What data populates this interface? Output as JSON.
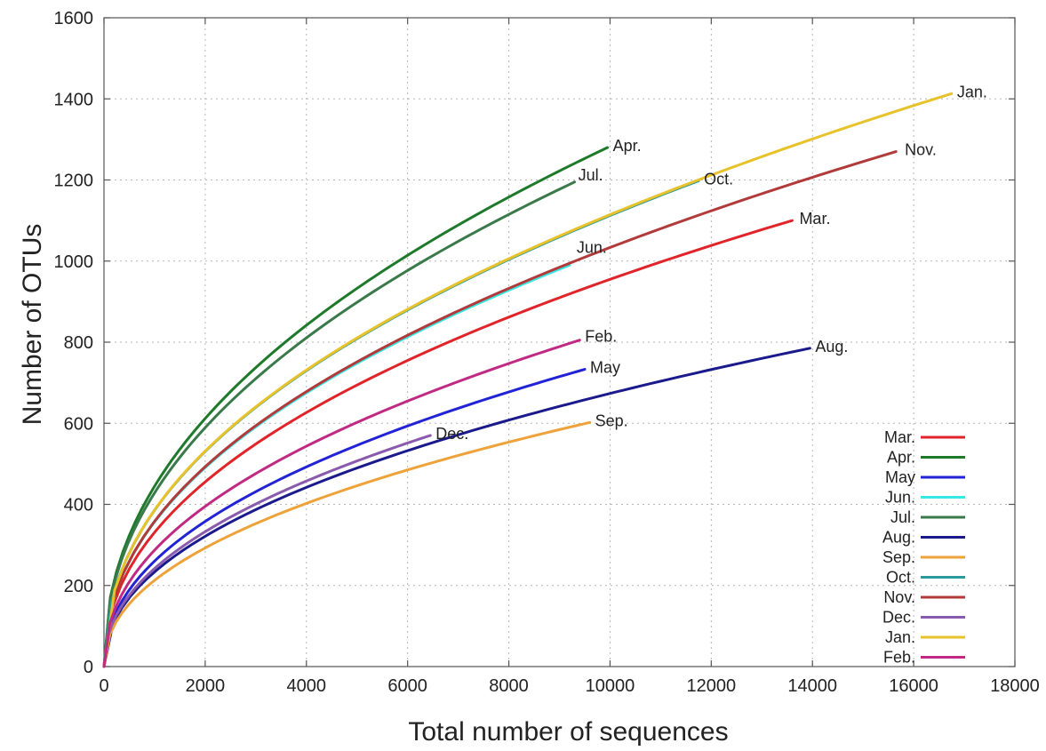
{
  "chart_data": {
    "type": "line",
    "title": "",
    "xlabel": "Total number of sequences",
    "ylabel": "Number of OTUs",
    "xlim": [
      0,
      18000
    ],
    "ylim": [
      0,
      1600
    ],
    "xticks": [
      "0",
      "2000",
      "4000",
      "6000",
      "8000",
      "10000",
      "12000",
      "14000",
      "16000",
      "18000"
    ],
    "yticks": [
      "0",
      "200",
      "400",
      "600",
      "800",
      "1000",
      "1200",
      "1400",
      "1600"
    ],
    "grid": true,
    "legend_position": "bottom-right",
    "series": [
      {
        "name": "Mar.",
        "color": "#e0252a",
        "max_x": 13600,
        "max_y": 1100,
        "label": "Mar."
      },
      {
        "name": "Apr.",
        "color": "#1e7a2a",
        "max_x": 9950,
        "max_y": 1280,
        "label": "Apr."
      },
      {
        "name": "May",
        "color": "#2323d6",
        "max_x": 9500,
        "max_y": 733,
        "label": "May"
      },
      {
        "name": "Jun.",
        "color": "#36e8e4",
        "max_x": 9200,
        "max_y": 990,
        "label": "Jun."
      },
      {
        "name": "Jul.",
        "color": "#3a7a4a",
        "max_x": 9300,
        "max_y": 1195,
        "label": "Jul."
      },
      {
        "name": "Aug.",
        "color": "#1a1a8c",
        "max_x": 13950,
        "max_y": 785,
        "label": "Aug."
      },
      {
        "name": "Sep.",
        "color": "#eea23a",
        "max_x": 9600,
        "max_y": 602,
        "label": "Sep."
      },
      {
        "name": "Oct.",
        "color": "#2a9a9a",
        "max_x": 11750,
        "max_y": 1198,
        "label": "Oct."
      },
      {
        "name": "Nov.",
        "color": "#b13a3a",
        "max_x": 15650,
        "max_y": 1270,
        "label": "Nov."
      },
      {
        "name": "Dec.",
        "color": "#8a5aae",
        "max_x": 6450,
        "max_y": 570,
        "label": "Dec."
      },
      {
        "name": "Jan.",
        "color": "#e8c22a",
        "max_x": 16750,
        "max_y": 1413,
        "label": "Jan."
      },
      {
        "name": "Feb.",
        "color": "#c02a82",
        "max_x": 9400,
        "max_y": 805,
        "label": "Feb."
      }
    ]
  }
}
